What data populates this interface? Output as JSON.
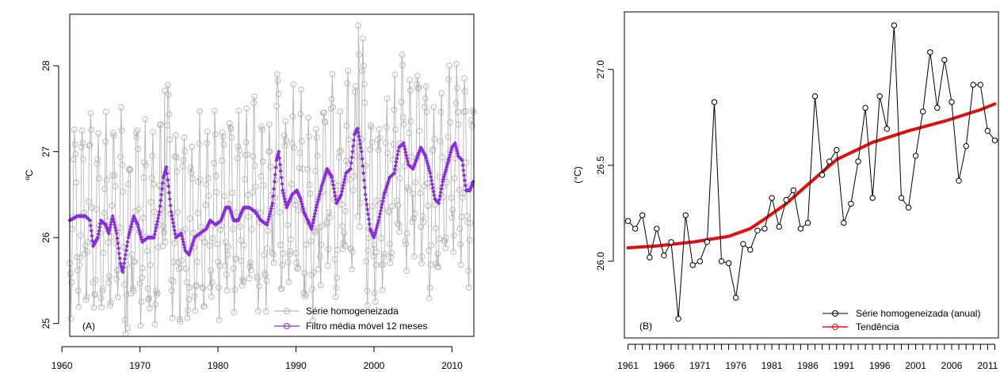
{
  "chart_data": [
    {
      "panel": "A",
      "type": "line",
      "panel_label": "(A)",
      "ylabel": "ºC",
      "xlim": [
        1961,
        2012.8
      ],
      "ylim": [
        24.85,
        28.6
      ],
      "xticks": [
        1960,
        1970,
        1980,
        1990,
        2000,
        2010
      ],
      "yticks": [
        25,
        26,
        27,
        28
      ],
      "grid": false,
      "legend_position": "bottom-right",
      "series": [
        {
          "name": "Série homogeneizada",
          "kind": "monthly",
          "color": "#b5b5b5",
          "marker": "open-circle",
          "start": 1961.0,
          "step_months": 1,
          "monthly_cycle": [
            25.55,
            25.35,
            25.25,
            25.5,
            25.85,
            26.25,
            26.85,
            27.15,
            27.25,
            26.85,
            26.35,
            25.9
          ],
          "annual_offsets": [
            0.05,
            0.0,
            0.15,
            -0.1,
            -0.05,
            0.0,
            0.1,
            -0.3,
            0.1,
            -0.1,
            -0.1,
            -0.05,
            0.55,
            -0.1,
            -0.1,
            -0.2,
            -0.05,
            -0.05,
            0.05,
            0.05,
            0.2,
            0.05,
            0.15,
            0.25,
            0.05,
            0.0,
            0.6,
            0.15,
            0.3,
            0.35,
            0.0,
            0.0,
            0.35,
            0.55,
            0.1,
            0.55,
            0.45,
            1.0,
            0.1,
            0.1,
            0.2,
            0.45,
            0.8,
            0.5,
            0.75,
            0.5,
            0.15,
            0.3,
            0.6,
            0.7,
            0.55,
            0.35
          ],
          "highlights": [
            [
              1973.2,
              27.71
            ],
            [
              1987.6,
              27.9
            ],
            [
              1998.0,
              28.47
            ],
            [
              1998.1,
              28.13
            ],
            [
              2010.6,
              28.02
            ],
            [
              1968.2,
              24.88
            ],
            [
              1968.4,
              24.95
            ],
            [
              1971.9,
              24.99
            ]
          ]
        },
        {
          "name": "Filtro média móvel 12 meses",
          "kind": "moving-average",
          "color": "#8a2be2",
          "marker": "filled-diamond",
          "points": [
            [
              1961.0,
              26.2
            ],
            [
              1962.0,
              26.25
            ],
            [
              1963.0,
              26.25
            ],
            [
              1963.6,
              26.2
            ],
            [
              1964.0,
              25.9
            ],
            [
              1964.6,
              26.0
            ],
            [
              1965.0,
              26.2
            ],
            [
              1965.6,
              26.15
            ],
            [
              1966.0,
              26.05
            ],
            [
              1966.5,
              26.25
            ],
            [
              1967.0,
              26.05
            ],
            [
              1967.5,
              25.7
            ],
            [
              1967.8,
              25.6
            ],
            [
              1968.5,
              26.0
            ],
            [
              1969.2,
              26.25
            ],
            [
              1969.7,
              26.15
            ],
            [
              1970.3,
              25.95
            ],
            [
              1971.0,
              26.0
            ],
            [
              1971.8,
              26.0
            ],
            [
              1972.5,
              26.3
            ],
            [
              1973.0,
              26.7
            ],
            [
              1973.4,
              26.82
            ],
            [
              1974.0,
              26.3
            ],
            [
              1974.6,
              26.0
            ],
            [
              1975.3,
              26.05
            ],
            [
              1975.8,
              25.85
            ],
            [
              1976.3,
              25.8
            ],
            [
              1977.0,
              26.0
            ],
            [
              1977.7,
              26.05
            ],
            [
              1978.5,
              26.1
            ],
            [
              1979.0,
              26.2
            ],
            [
              1979.7,
              26.15
            ],
            [
              1980.4,
              26.2
            ],
            [
              1981.0,
              26.35
            ],
            [
              1981.5,
              26.35
            ],
            [
              1982.0,
              26.2
            ],
            [
              1982.6,
              26.2
            ],
            [
              1983.3,
              26.35
            ],
            [
              1984.0,
              26.35
            ],
            [
              1984.8,
              26.3
            ],
            [
              1985.5,
              26.2
            ],
            [
              1986.3,
              26.15
            ],
            [
              1987.0,
              26.4
            ],
            [
              1987.5,
              26.9
            ],
            [
              1987.8,
              27.0
            ],
            [
              1988.3,
              26.55
            ],
            [
              1988.8,
              26.35
            ],
            [
              1989.5,
              26.5
            ],
            [
              1990.1,
              26.55
            ],
            [
              1990.6,
              26.45
            ],
            [
              1991.0,
              26.3
            ],
            [
              1991.5,
              26.2
            ],
            [
              1992.0,
              26.1
            ],
            [
              1992.6,
              26.35
            ],
            [
              1993.3,
              26.6
            ],
            [
              1994.0,
              26.8
            ],
            [
              1994.6,
              26.7
            ],
            [
              1995.2,
              26.4
            ],
            [
              1995.8,
              26.5
            ],
            [
              1996.4,
              26.75
            ],
            [
              1997.0,
              26.8
            ],
            [
              1997.5,
              27.2
            ],
            [
              1997.9,
              27.27
            ],
            [
              1998.4,
              27.0
            ],
            [
              1998.9,
              26.5
            ],
            [
              1999.5,
              26.1
            ],
            [
              2000.0,
              26.0
            ],
            [
              2000.6,
              26.2
            ],
            [
              2001.3,
              26.5
            ],
            [
              2002.0,
              26.7
            ],
            [
              2002.6,
              26.75
            ],
            [
              2003.2,
              27.05
            ],
            [
              2003.8,
              27.1
            ],
            [
              2004.4,
              26.85
            ],
            [
              2005.0,
              26.8
            ],
            [
              2005.6,
              26.95
            ],
            [
              2006.0,
              27.05
            ],
            [
              2006.6,
              26.95
            ],
            [
              2007.2,
              26.75
            ],
            [
              2007.8,
              26.45
            ],
            [
              2008.3,
              26.4
            ],
            [
              2008.8,
              26.65
            ],
            [
              2009.4,
              26.85
            ],
            [
              2010.0,
              27.05
            ],
            [
              2010.4,
              27.1
            ],
            [
              2010.8,
              26.95
            ],
            [
              2011.3,
              26.9
            ],
            [
              2011.8,
              26.55
            ],
            [
              2012.3,
              26.55
            ],
            [
              2012.7,
              26.65
            ]
          ]
        }
      ]
    },
    {
      "panel": "B",
      "type": "line",
      "panel_label": "(B)",
      "ylabel": "(°C)",
      "xlim": [
        1960.5,
        2012.5
      ],
      "ylim": [
        25.6,
        27.3
      ],
      "xtick_labels": [
        1961,
        1966,
        1971,
        1976,
        1981,
        1986,
        1991,
        1996,
        2001,
        2006,
        2011
      ],
      "yticks": [
        26.0,
        26.5,
        27.0
      ],
      "ytick_labels": [
        "26.0",
        "26.5",
        "27.0"
      ],
      "grid": false,
      "legend_position": "bottom-right",
      "series": [
        {
          "name": "Série homogeneizada (anual)",
          "color": "#000000",
          "marker": "open-circle",
          "x": [
            1961,
            1962,
            1963,
            1964,
            1965,
            1966,
            1967,
            1968,
            1969,
            1970,
            1971,
            1972,
            1973,
            1974,
            1975,
            1976,
            1977,
            1978,
            1979,
            1980,
            1981,
            1982,
            1983,
            1984,
            1985,
            1986,
            1987,
            1988,
            1989,
            1990,
            1991,
            1992,
            1993,
            1994,
            1995,
            1996,
            1997,
            1998,
            1999,
            2000,
            2001,
            2002,
            2003,
            2004,
            2005,
            2006,
            2007,
            2008,
            2009,
            2010,
            2011,
            2012
          ],
          "y": [
            26.21,
            26.17,
            26.24,
            26.02,
            26.17,
            26.03,
            26.1,
            25.7,
            26.24,
            25.98,
            26.0,
            26.1,
            26.83,
            26.0,
            25.99,
            25.81,
            26.09,
            26.06,
            26.16,
            26.17,
            26.33,
            26.18,
            26.32,
            26.37,
            26.17,
            26.2,
            26.86,
            26.45,
            26.52,
            26.58,
            26.2,
            26.3,
            26.52,
            26.8,
            26.33,
            26.86,
            26.69,
            27.23,
            26.33,
            26.28,
            26.55,
            26.78,
            27.09,
            26.8,
            27.05,
            26.83,
            26.42,
            26.6,
            26.92,
            26.92,
            26.68,
            26.63
          ]
        },
        {
          "name": "Tendência",
          "color": "#e01010",
          "marker": "none",
          "x": [
            1961,
            1965,
            1970,
            1975,
            1978,
            1980,
            1983,
            1986,
            1990,
            1995,
            2000,
            2005,
            2010,
            2012
          ],
          "y": [
            26.07,
            26.08,
            26.1,
            26.13,
            26.17,
            26.22,
            26.3,
            26.4,
            26.53,
            26.62,
            26.68,
            26.73,
            26.79,
            26.82
          ]
        }
      ]
    }
  ]
}
